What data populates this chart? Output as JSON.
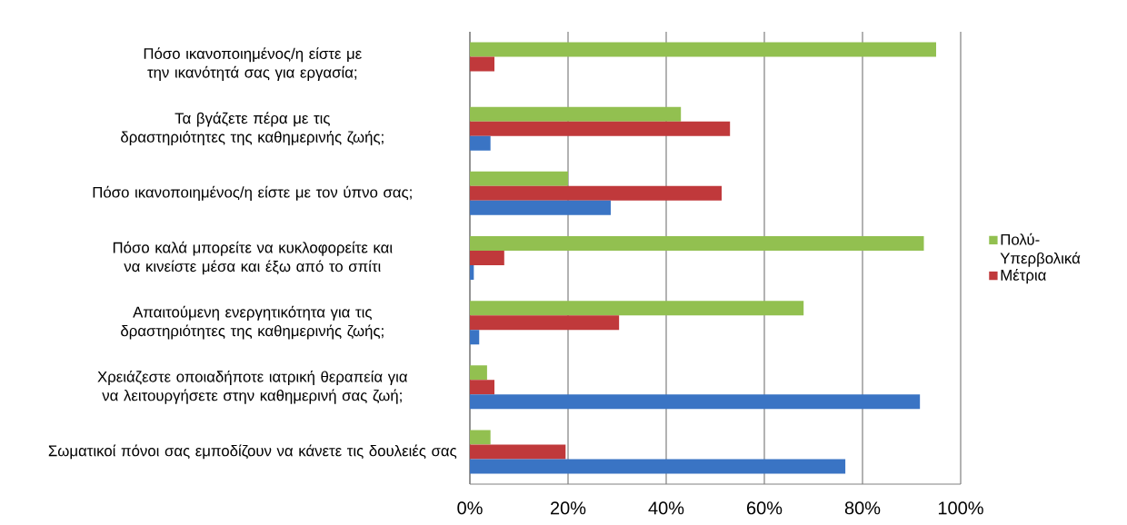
{
  "chart_data": {
    "type": "bar",
    "orientation": "horizontal",
    "categories": [
      "Πόσο ικανοποιημένος/η είστε με την ικανότητά σας για εργασία;",
      "Τα βγάζετε πέρα με τις δραστηριότητες της καθημερινής ζωής;",
      "Πόσο ικανοποιημένος/η είστε με τον ύπνο σας;",
      "Πόσο καλά μπορείτε να κυκλοφορείτε και να κινείστε μέσα και έξω από το σπίτι",
      "Απαιτούμενη ενεργητικότητα για τις δραστηριότητες της καθημερινής ζωής;",
      "Χρειάζεστε οποιαδήποτε ιατρική θεραπεία για να λειτουργήσετε στην καθημερινή σας ζωή;",
      "Σωματικοί πόνοι  σας εμποδίζουν να κάνετε τις δουλειές σας"
    ],
    "series": [
      {
        "name": "Πολύ-Υπερβολικά",
        "color": "#92c050",
        "values": [
          95,
          43,
          20,
          92.5,
          68,
          3.5,
          4.2
        ]
      },
      {
        "name": "Μέτρια",
        "color": "#c0393b",
        "values": [
          5,
          53,
          51.3,
          7,
          30.4,
          5,
          19.5
        ]
      },
      {
        "color": "#3a74c4",
        "values": [
          null,
          4.2,
          28.7,
          0.8,
          1.9,
          91.7,
          76.5
        ]
      }
    ],
    "xlim": [
      0,
      100
    ],
    "xticks": [
      {
        "value": 0,
        "label": "0%"
      },
      {
        "value": 20,
        "label": "20%"
      },
      {
        "value": 40,
        "label": "40%"
      },
      {
        "value": 60,
        "label": "60%"
      },
      {
        "value": 80,
        "label": "80%"
      },
      {
        "value": 100,
        "label": "100%"
      }
    ],
    "grid": "x",
    "legend": "right"
  }
}
